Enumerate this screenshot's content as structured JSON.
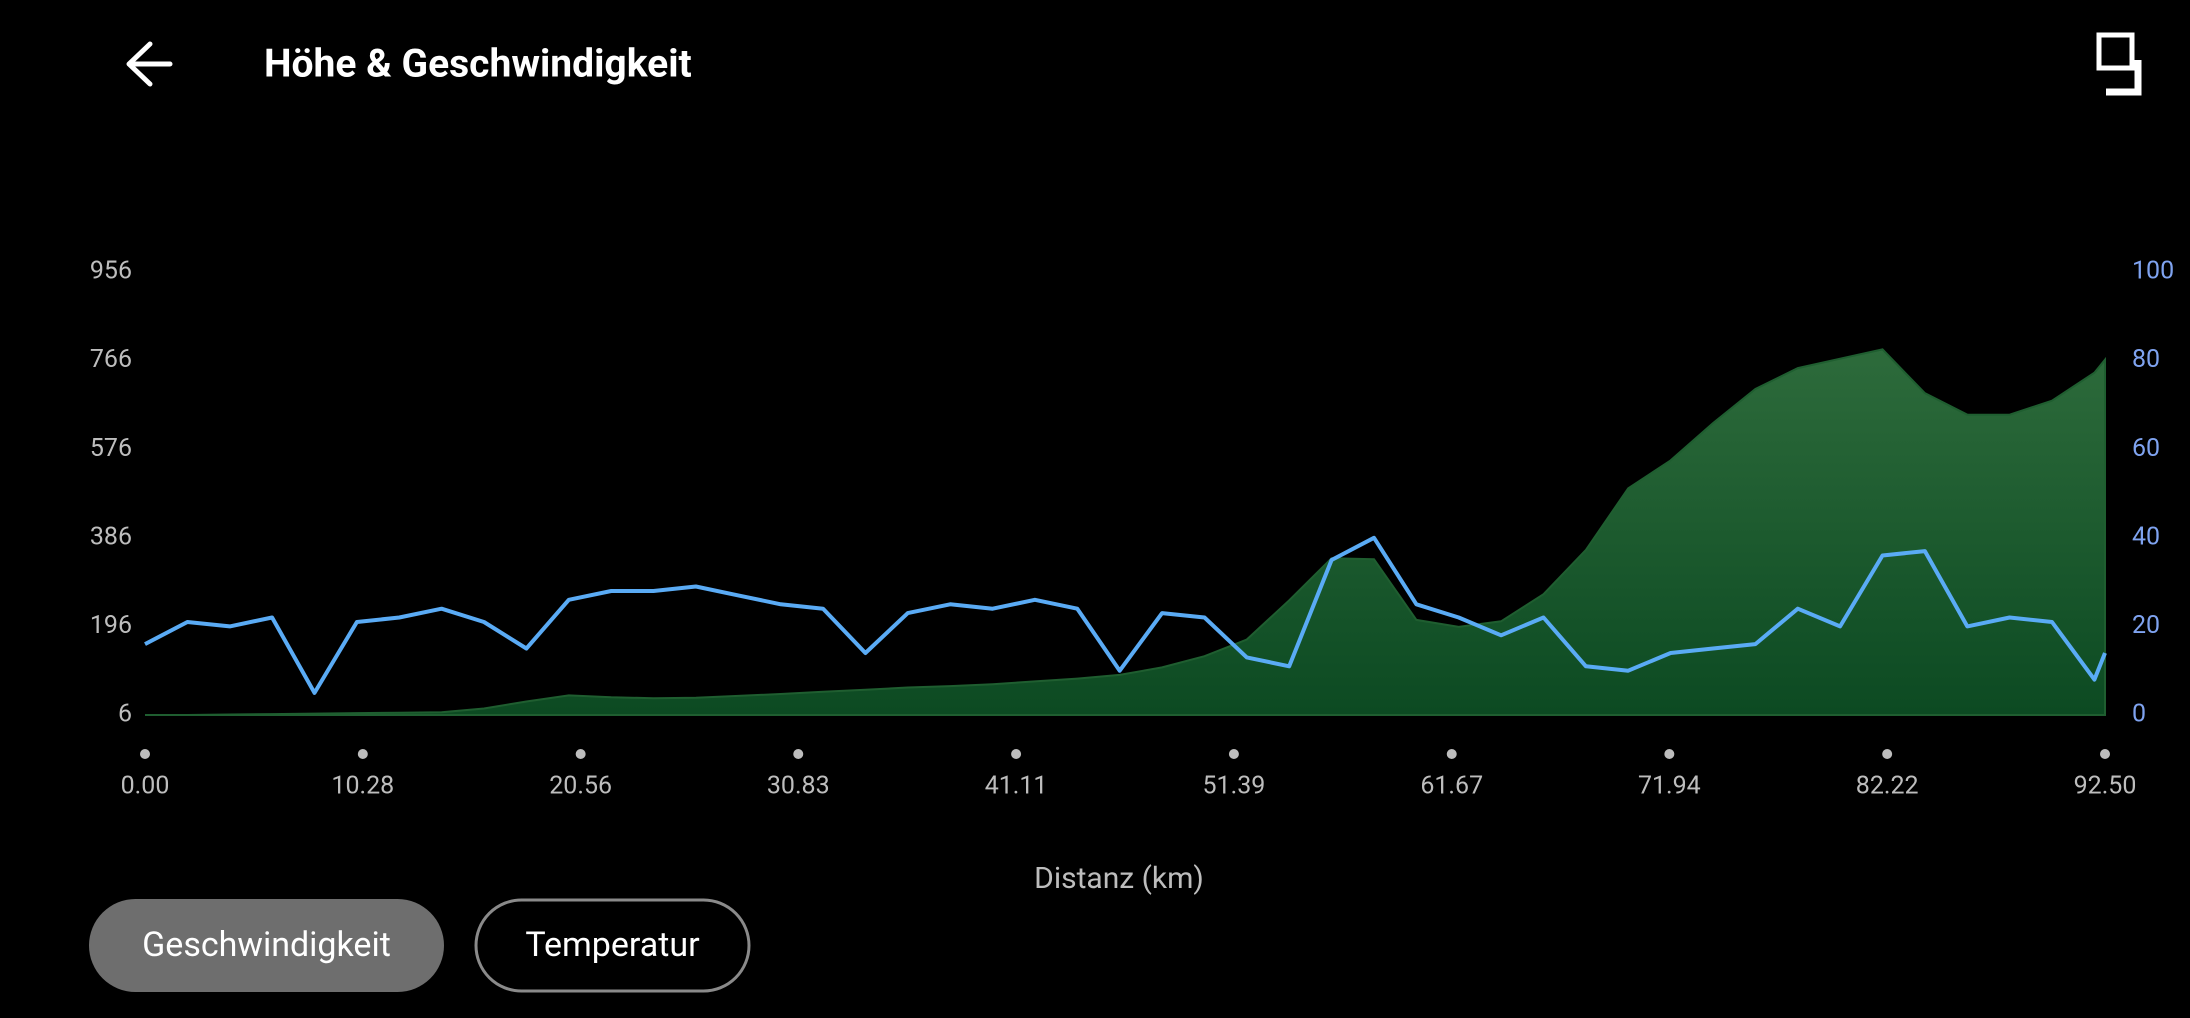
{
  "header": {
    "title": "Höhe & Geschwindigkeit"
  },
  "chart_data": {
    "type": "area-line",
    "x_label": "Distanz (km)",
    "x": [
      0,
      2,
      4,
      6,
      8,
      10,
      12,
      14,
      16,
      18,
      20,
      22,
      24,
      26,
      28,
      30,
      32,
      34,
      36,
      38,
      40,
      42,
      44,
      46,
      48,
      50,
      52,
      54,
      56,
      58,
      60,
      62,
      64,
      66,
      68,
      70,
      72,
      74,
      76,
      78,
      80,
      82,
      84,
      86,
      88,
      90,
      92,
      92.5
    ],
    "series": [
      {
        "name": "Höhe",
        "color": "#1f5e30",
        "axis": "y",
        "values": [
          6,
          6,
          7,
          8,
          9,
          10,
          11,
          12,
          20,
          35,
          48,
          44,
          42,
          43,
          47,
          51,
          56,
          60,
          65,
          68,
          72,
          78,
          84,
          92,
          108,
          132,
          168,
          252,
          342,
          340,
          210,
          195,
          207,
          265,
          360,
          492,
          552,
          632,
          705,
          750,
          770,
          790,
          696,
          650,
          650,
          680,
          740,
          768
        ]
      },
      {
        "name": "Geschwindigkeit",
        "color": "#5aabf5",
        "axis": "y2",
        "values": [
          16,
          21,
          20,
          22,
          5,
          21,
          22,
          24,
          21,
          15,
          26,
          28,
          28,
          29,
          27,
          25,
          24,
          14,
          23,
          25,
          24,
          26,
          24,
          10,
          23,
          22,
          13,
          11,
          35,
          40,
          25,
          22,
          18,
          22,
          11,
          10,
          14,
          15,
          16,
          24,
          20,
          36,
          37,
          20,
          22,
          21,
          8,
          14
        ]
      }
    ],
    "xlim": [
      0,
      92.5
    ],
    "xticks": [
      {
        "value": 0,
        "label": "0.00"
      },
      10.28,
      20.56,
      30.83,
      41.11,
      51.39,
      61.67,
      71.94,
      82.22,
      {
        "value": 92.5,
        "label": "92.50"
      }
    ],
    "ylim": [
      6,
      956
    ],
    "yticks": [
      6,
      196,
      386,
      576,
      766,
      956
    ],
    "y2lim": [
      0,
      100
    ],
    "y2ticks": [
      0,
      20,
      40,
      60,
      80,
      100
    ]
  },
  "buttons": [
    "Geschwindigkeit",
    "Temperatur"
  ]
}
